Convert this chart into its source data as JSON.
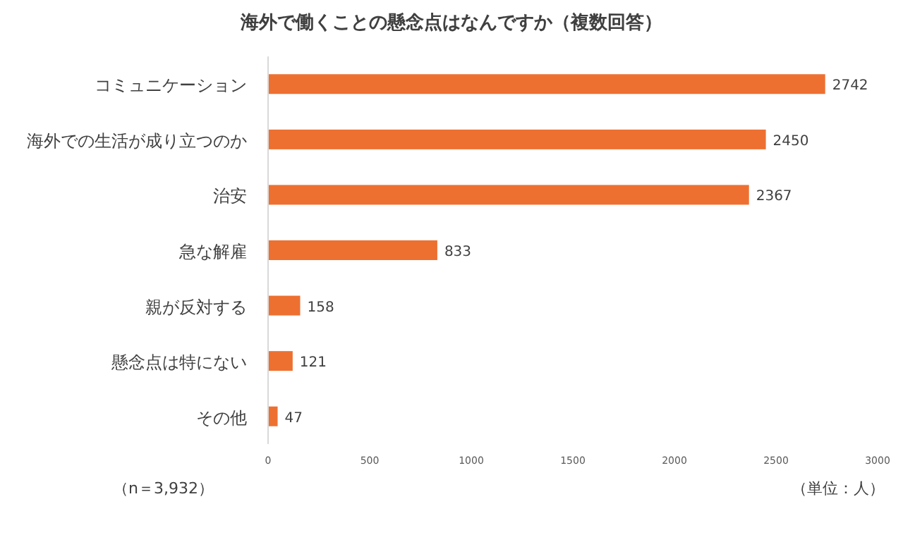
{
  "chart_data": {
    "type": "bar",
    "orientation": "horizontal",
    "title": "海外で働くことの懸念点はなんですか（複数回答）",
    "categories": [
      "コミュニケーション",
      "海外での生活が成り立つのか",
      "治安",
      "急な解雇",
      "親が反対する",
      "懸念点は特にない",
      "その他"
    ],
    "values": [
      2742,
      2450,
      2367,
      833,
      158,
      121,
      47
    ],
    "color": "#ed7031",
    "xlim": [
      0,
      3000
    ],
    "xticks": [
      0,
      500,
      1000,
      1500,
      2000,
      2500,
      3000
    ],
    "data_labels": true,
    "grid": false,
    "annotations": [
      "（n＝3,932）",
      "（単位：人）"
    ]
  }
}
